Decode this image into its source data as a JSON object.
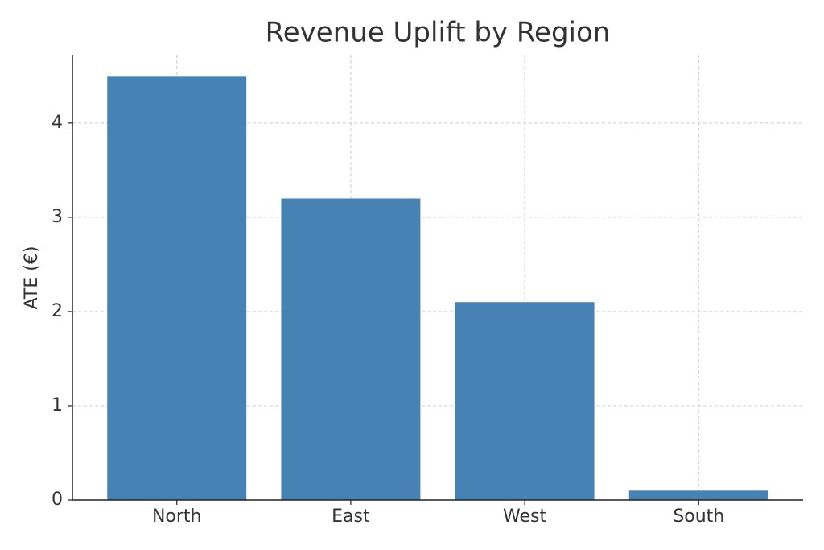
{
  "chart_data": {
    "type": "bar",
    "title": "Revenue Uplift by Region",
    "y_label": "ATE (€)",
    "categories": [
      "North",
      "East",
      "West",
      "South"
    ],
    "values": [
      4.5,
      3.2,
      2.1,
      0.1
    ],
    "color": "#4682b4",
    "ylim": [
      0,
      4.725
    ],
    "yticks": [
      0,
      1,
      2,
      3,
      4
    ],
    "grid": true
  }
}
